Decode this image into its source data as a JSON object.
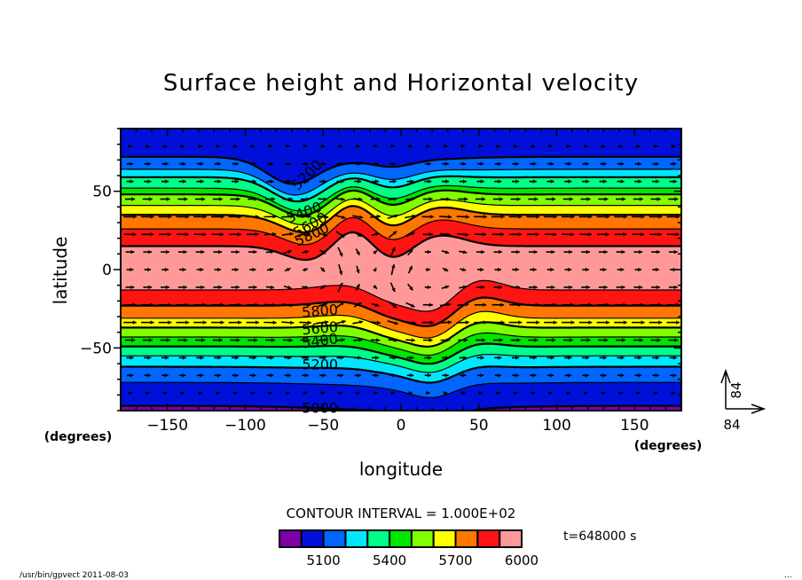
{
  "chart_data": {
    "type": "heatmap",
    "subtype": "filled-contour-with-vectors",
    "title": "Surface height and Horizontal velocity",
    "xlabel": "longitude",
    "ylabel": "latitude",
    "x_unit_label": "(degrees)",
    "y_unit_label": "(degrees)",
    "xlim": [
      -180,
      180
    ],
    "ylim": [
      -90,
      90
    ],
    "xticks": [
      -150,
      -100,
      -50,
      0,
      50,
      100,
      150
    ],
    "xtick_labels": [
      "−150",
      "−100",
      "−50",
      "0",
      "50",
      "100",
      "150"
    ],
    "yticks": [
      -50,
      0,
      50
    ],
    "ytick_labels": [
      "−50",
      "0",
      "50"
    ],
    "contour_interval_text": "CONTOUR INTERVAL = 1.000E+02",
    "contour_interval": 100,
    "levels": [
      5000,
      5100,
      5200,
      5300,
      5400,
      5500,
      5600,
      5700,
      5800,
      5900,
      6000
    ],
    "colorbar": {
      "colors": [
        "#7f00a8",
        "#0010d8",
        "#0066ff",
        "#00e6ff",
        "#00ff88",
        "#00e600",
        "#80ff00",
        "#ffff00",
        "#ff7700",
        "#ff1414",
        "#ff9999"
      ],
      "tick_labels": [
        "5100",
        "5400",
        "5700",
        "6000"
      ],
      "tick_values": [
        5100,
        5400,
        5700,
        6000
      ]
    },
    "contour_labels": [
      {
        "text": "5200",
        "lon": -60,
        "lat": 60,
        "rotation": -45
      },
      {
        "text": "5400",
        "lon": -62,
        "lat": 36,
        "rotation": -20
      },
      {
        "text": "5600",
        "lon": -58,
        "lat": 28,
        "rotation": -30
      },
      {
        "text": "5800",
        "lon": -57,
        "lat": 22,
        "rotation": -25
      },
      {
        "text": "5800",
        "lon": -52,
        "lat": -27,
        "rotation": -5
      },
      {
        "text": "5600",
        "lon": -52,
        "lat": -38,
        "rotation": -5
      },
      {
        "text": "5400",
        "lon": -52,
        "lat": -46,
        "rotation": -8
      },
      {
        "text": "5200",
        "lon": -52,
        "lat": -61,
        "rotation": 0
      },
      {
        "text": "5000",
        "lon": -52,
        "lat": -89,
        "rotation": 0
      }
    ],
    "band_boundaries_at_west_edge_lat": {
      "north": [
        72,
        64,
        59,
        52,
        48,
        41,
        35,
        26,
        15
      ],
      "south": [
        -13,
        -23,
        -31,
        -37,
        -43,
        -49,
        -55,
        -62,
        -72,
        -87
      ]
    },
    "perturbations": [
      {
        "lon": -70,
        "lat_center": 30,
        "amplitude_deg": -18,
        "note": "trough in northern mid-latitude contours near 70W"
      },
      {
        "lon": -30,
        "lat_center": 20,
        "amplitude_deg": 10,
        "note": "ridge of high surface height near 30W"
      },
      {
        "lon": -5,
        "lat_center": 20,
        "amplitude_deg": -10,
        "note": "northern trough near 0"
      },
      {
        "lon": 25,
        "lat_center": 20,
        "amplitude_deg": 8,
        "note": "northern ridge near 25E"
      },
      {
        "lon": -5,
        "lat_center": -30,
        "amplitude_deg": -12,
        "note": "southern contours dip near 0-10E"
      },
      {
        "lon": 20,
        "lat_center": -30,
        "amplitude_deg": -12,
        "note": "southern trough near 20E"
      },
      {
        "lon": 50,
        "lat_center": -30,
        "amplitude_deg": 10,
        "note": "southern ridge near 50E"
      }
    ],
    "vector_reference": {
      "x_label": "84",
      "y_label": "84"
    },
    "vector_field_note": "predominantly eastward (westerly) arrows in mid-latitudes, weak/mixed arrows near equator between 60W and 30E"
  },
  "annotations": {
    "time_label": "t=648000 s",
    "footer_left": "/usr/bin/gpvect  2011-08-03",
    "footer_right": "..."
  }
}
